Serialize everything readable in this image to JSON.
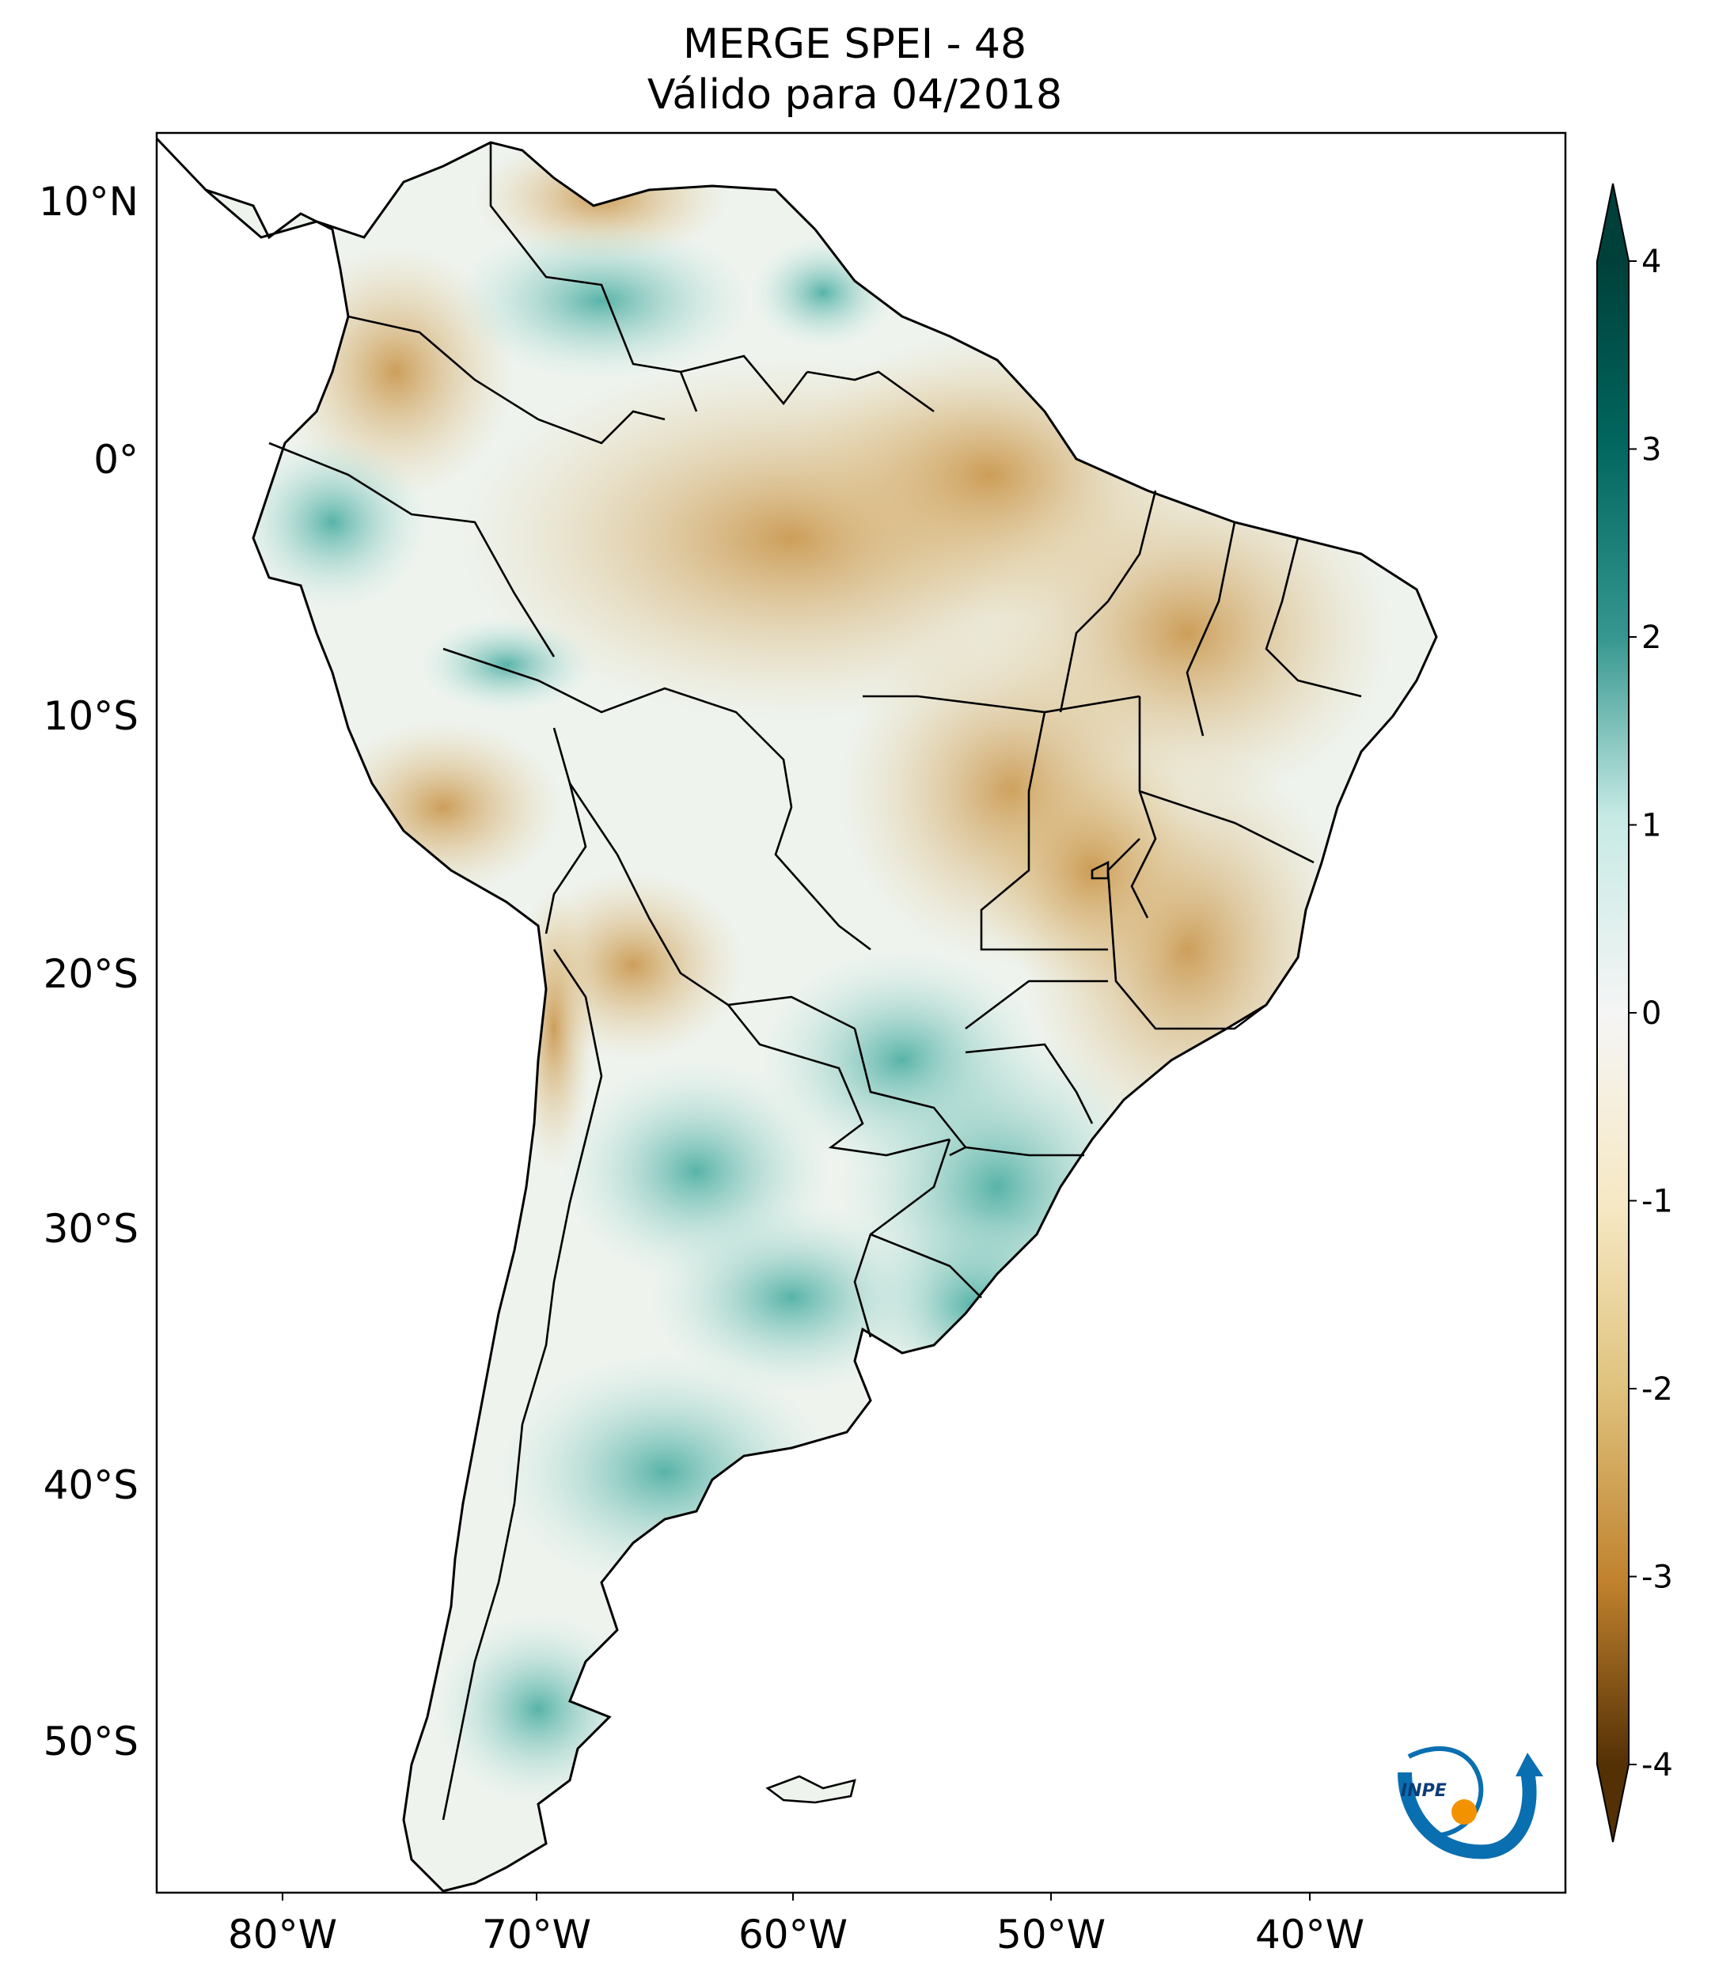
{
  "title": {
    "line1": "MERGE   SPEI - 48",
    "line2": "Válido para 04/2018"
  },
  "map": {
    "region": "South America",
    "lon_range": [
      -85,
      -30
    ],
    "lat_range": [
      -56,
      13
    ],
    "lon_ticks": [
      {
        "value": -80,
        "label": "80°W"
      },
      {
        "value": -70,
        "label": "70°W"
      },
      {
        "value": -60,
        "label": "60°W"
      },
      {
        "value": -50,
        "label": "50°W"
      },
      {
        "value": -40,
        "label": "40°W"
      }
    ],
    "lat_ticks": [
      {
        "value": 10,
        "label": "10°N"
      },
      {
        "value": 0,
        "label": "0°"
      },
      {
        "value": -10,
        "label": "10°S"
      },
      {
        "value": -20,
        "label": "20°S"
      },
      {
        "value": -30,
        "label": "30°S"
      },
      {
        "value": -40,
        "label": "40°S"
      },
      {
        "value": -50,
        "label": "50°S"
      }
    ]
  },
  "colorbar": {
    "min": -4,
    "max": 4,
    "ticks": [
      {
        "value": 4,
        "label": "4"
      },
      {
        "value": 3,
        "label": "3"
      },
      {
        "value": 2,
        "label": "2"
      },
      {
        "value": 1,
        "label": "1"
      },
      {
        "value": 0,
        "label": "0"
      },
      {
        "value": -1,
        "label": "-1"
      },
      {
        "value": -2,
        "label": "-2"
      },
      {
        "value": -3,
        "label": "-3"
      },
      {
        "value": -4,
        "label": "-4"
      }
    ],
    "colors": {
      "wet_max": "#00403a",
      "wet": "#35978f",
      "wet_light": "#c7eae5",
      "neutral": "#f5f5f5",
      "dry_light": "#f6e8c3",
      "dry": "#bf812d",
      "dry_max": "#543005"
    }
  },
  "logo": {
    "text": "INPE"
  }
}
